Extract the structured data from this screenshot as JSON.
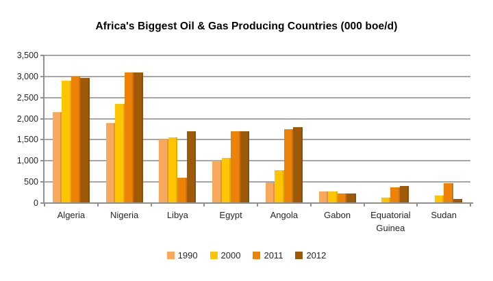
{
  "title": "Africa's Biggest Oil & Gas Producing Countries (000 boe/d)",
  "colors": {
    "series_1990": "#F9A95C",
    "series_2000": "#FFC503",
    "series_2011": "#ED8208",
    "series_2012": "#9E5A08",
    "gridline": "#a6a6a6",
    "axis": "#8f8f8f",
    "text": "#262626"
  },
  "chart_data": {
    "type": "bar",
    "title": "Africa's Biggest Oil & Gas Producing Countries (000 boe/d)",
    "xlabel": "",
    "ylabel": "",
    "ylim": [
      0,
      3500
    ],
    "ytick_interval": 500,
    "y_tick_labels": [
      "0",
      "500",
      "1,000",
      "1,500",
      "2,000",
      "2,500",
      "3,000",
      "3,500"
    ],
    "grid": true,
    "legend_position": "bottom",
    "categories": [
      "Algeria",
      "Nigeria",
      "Libya",
      "Egypt",
      "Angola",
      "Gabon",
      "Equatorial Guinea",
      "Sudan"
    ],
    "series": [
      {
        "name": "1990",
        "color": "#F9A95C",
        "values": [
          2150,
          1900,
          1500,
          1000,
          480,
          270,
          0,
          0
        ]
      },
      {
        "name": "2000",
        "color": "#FFC503",
        "values": [
          2900,
          2350,
          1550,
          1075,
          775,
          270,
          130,
          180
        ]
      },
      {
        "name": "2011",
        "color": "#ED8208",
        "values": [
          3000,
          3100,
          600,
          1700,
          1750,
          230,
          375,
          470
        ]
      },
      {
        "name": "2012",
        "color": "#9E5A08",
        "values": [
          2960,
          3100,
          1700,
          1700,
          1800,
          230,
          400,
          100
        ]
      }
    ]
  }
}
